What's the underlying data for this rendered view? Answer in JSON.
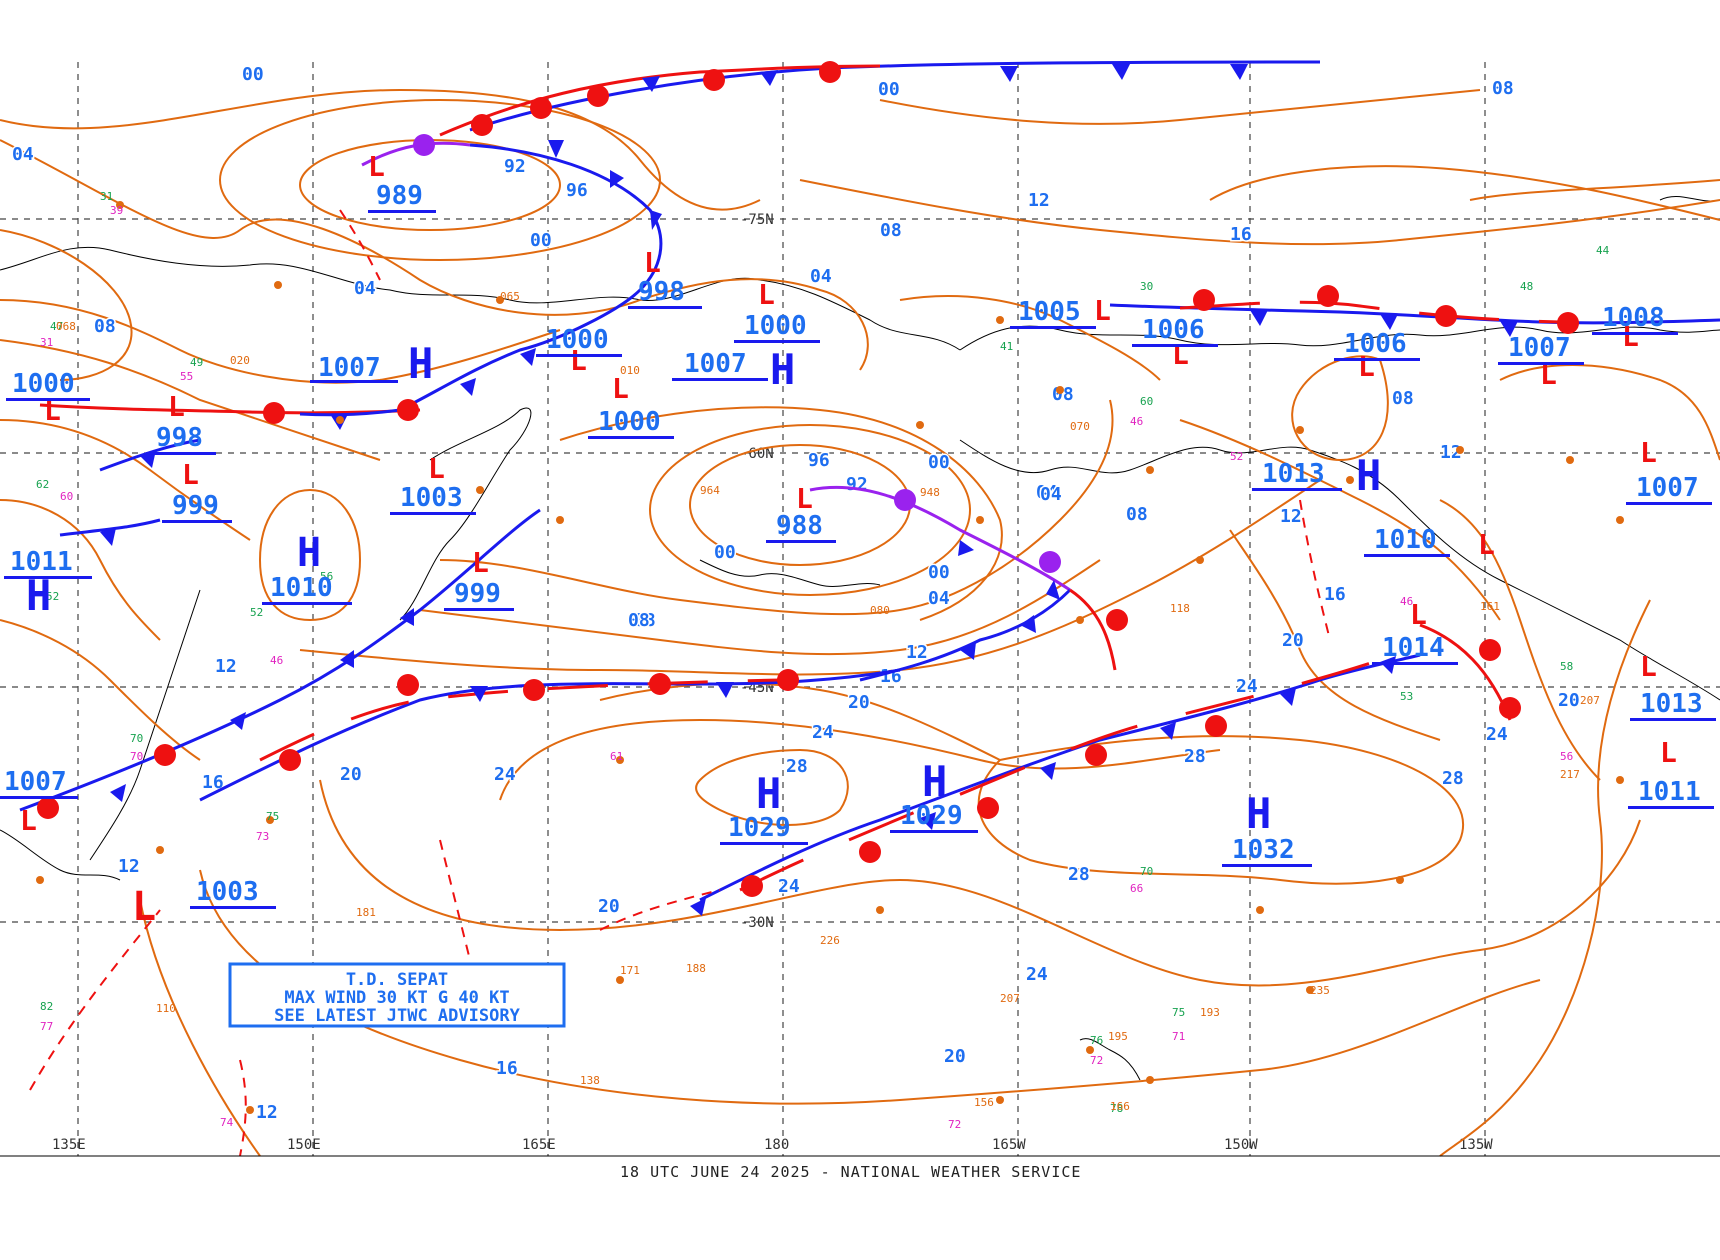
{
  "footer": "18 UTC JUNE 24 2025 - NATIONAL WEATHER SERVICE",
  "colors": {
    "isobar": "#e06a10",
    "cold": "#1a1aee",
    "warm": "#ee1111",
    "occluded": "#9a22ee",
    "grid": "#444444",
    "label": "#1e6ef0",
    "coast": "#000000"
  },
  "lon_labels": [
    "135E",
    "150E",
    "165E",
    "180",
    "165W",
    "150W",
    "135W"
  ],
  "lat_labels": [
    "-75N",
    "-60N",
    "-45N",
    "-30N"
  ],
  "advisory": {
    "line1": "T.D. SEPAT",
    "line2": "MAX WIND 30 KT G 40 KT",
    "line3": "SEE LATEST JTWC ADVISORY"
  },
  "highs": [
    {
      "id": "h1007a",
      "value": "1007"
    },
    {
      "id": "h1007b",
      "value": "1007"
    },
    {
      "id": "h1010",
      "value": "1010"
    },
    {
      "id": "h1011",
      "value": "1011"
    },
    {
      "id": "h1029a",
      "value": "1029"
    },
    {
      "id": "h1029b",
      "value": "1029"
    },
    {
      "id": "h1032",
      "value": "1032"
    },
    {
      "id": "h1013",
      "value": "1013"
    }
  ],
  "lows": [
    {
      "id": "l989",
      "value": "989"
    },
    {
      "id": "l998a",
      "value": "998"
    },
    {
      "id": "l1000a",
      "value": "1000"
    },
    {
      "id": "l1000b",
      "value": "1000"
    },
    {
      "id": "l1000c",
      "value": "1000"
    },
    {
      "id": "l1000d",
      "value": "1000"
    },
    {
      "id": "l998b",
      "value": "998"
    },
    {
      "id": "l999a",
      "value": "999"
    },
    {
      "id": "l1003a",
      "value": "1003"
    },
    {
      "id": "l999b",
      "value": "999"
    },
    {
      "id": "l988",
      "value": "988"
    },
    {
      "id": "l1005",
      "value": "1005"
    },
    {
      "id": "l1006a",
      "value": "1006"
    },
    {
      "id": "l1006b",
      "value": "1006"
    },
    {
      "id": "l1008",
      "value": "1008"
    },
    {
      "id": "l1007c",
      "value": "1007"
    },
    {
      "id": "l1007d",
      "value": "1007"
    },
    {
      "id": "l1010b",
      "value": "1010"
    },
    {
      "id": "l1014",
      "value": "1014"
    },
    {
      "id": "l1013b",
      "value": "1013"
    },
    {
      "id": "l1011b",
      "value": "1011"
    },
    {
      "id": "l1007e",
      "value": "1007"
    },
    {
      "id": "l1003b",
      "value": "1003"
    }
  ],
  "isobar_labels": [
    "00",
    "04",
    "08",
    "92",
    "96",
    "00",
    "04",
    "08",
    "04",
    "12",
    "16",
    "08",
    "00",
    "08",
    "12",
    "16",
    "20",
    "24",
    "28",
    "28",
    "24",
    "20",
    "16",
    "12",
    "20",
    "24",
    "28",
    "24",
    "20",
    "16",
    "12",
    "08",
    "04",
    "00",
    "96",
    "92",
    "00",
    "04",
    "08",
    "12",
    "16",
    "20",
    "24",
    "28",
    "24",
    "20",
    "12",
    "08",
    "04",
    "00",
    "08",
    "12"
  ]
}
